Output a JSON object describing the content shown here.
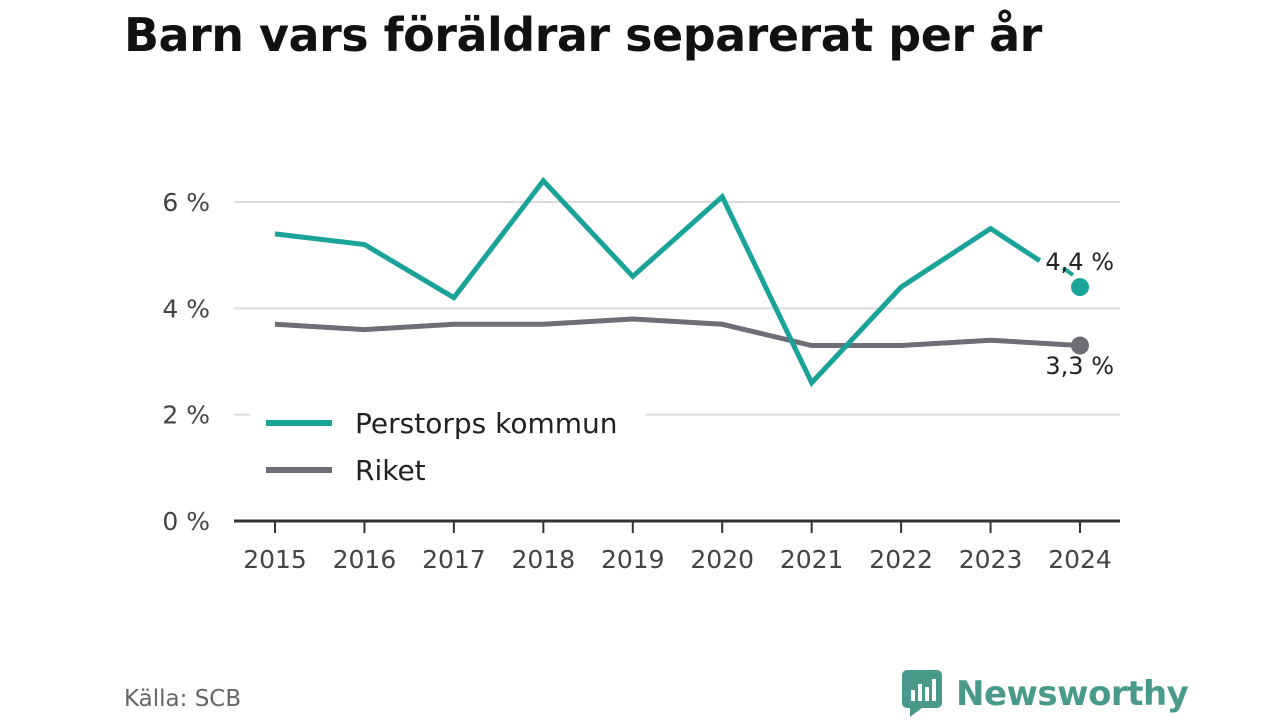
{
  "title": "Barn vars föräldrar separerat per år",
  "source": "Källa: SCB",
  "brand": {
    "name": "Newsworthy",
    "icon": "newsworthy-logo-icon",
    "color": "#4a9a8c"
  },
  "chart_data": {
    "type": "line",
    "title": "Barn vars föräldrar separerat per år",
    "categories": [
      "2015",
      "2016",
      "2017",
      "2018",
      "2019",
      "2020",
      "2021",
      "2022",
      "2023",
      "2024"
    ],
    "series": [
      {
        "name": "Perstorps kommun",
        "color": "#1aa398",
        "values": [
          5.4,
          5.2,
          4.2,
          6.4,
          4.6,
          6.1,
          2.6,
          4.4,
          5.5,
          4.4
        ],
        "end_label": "4,4 %"
      },
      {
        "name": "Riket",
        "color": "#6e6e76",
        "values": [
          3.7,
          3.6,
          3.7,
          3.7,
          3.8,
          3.7,
          3.3,
          3.3,
          3.4,
          3.3
        ],
        "end_label": "3,3 %"
      }
    ],
    "y_ticks": [
      {
        "value": 0,
        "label": "0 %"
      },
      {
        "value": 2,
        "label": "2 %"
      },
      {
        "value": 4,
        "label": "4 %"
      },
      {
        "value": 6,
        "label": "6 %"
      }
    ],
    "ylim": [
      0,
      7.5
    ],
    "grid": true,
    "legend_position": "bottom-left"
  }
}
